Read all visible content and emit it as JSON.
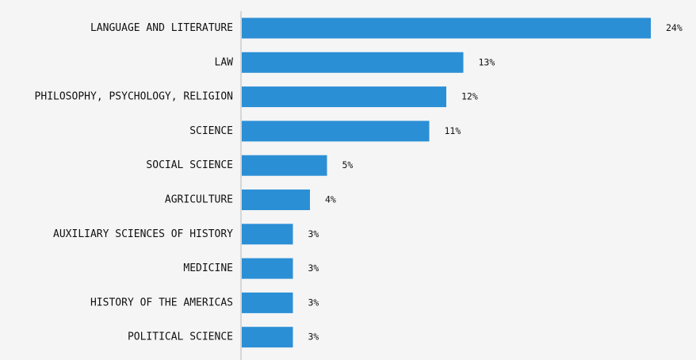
{
  "chart_data": {
    "type": "bar",
    "orientation": "horizontal",
    "title": "",
    "xlabel": "",
    "ylabel": "",
    "value_suffix": "%",
    "categories": [
      "LANGUAGE AND LITERATURE",
      "LAW",
      "PHILOSOPHY, PSYCHOLOGY, RELIGION",
      "SCIENCE",
      "SOCIAL SCIENCE",
      "AGRICULTURE",
      "AUXILIARY SCIENCES OF HISTORY",
      "MEDICINE",
      "HISTORY OF THE AMERICAS",
      "POLITICAL SCIENCE"
    ],
    "values": [
      24,
      13,
      12,
      11,
      5,
      4,
      3,
      3,
      3,
      3
    ],
    "xlim": [
      0,
      24
    ],
    "grid": false,
    "legend": "none",
    "colors": {
      "bar": "#2b8fd6",
      "axis": "#cccccc",
      "text": "#111111",
      "background": "#f5f5f5"
    }
  }
}
